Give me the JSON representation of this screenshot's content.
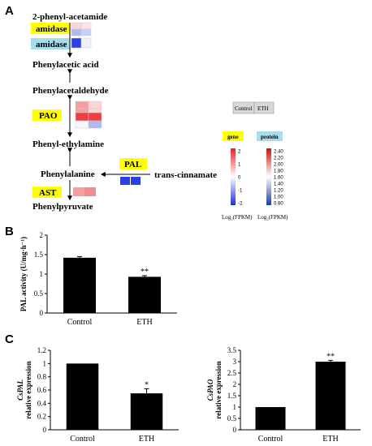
{
  "panel_labels": [
    "A",
    "B",
    "C"
  ],
  "pathway": {
    "compounds": {
      "c1": "2-phenyl-acetamide",
      "c2": "Phenylacetic acid",
      "c3": "Phenylacetaldehyde",
      "c4": "Phenyl-ethylamine",
      "c5": "Phenylalanine",
      "c6": "trans-cinnamate",
      "c7": "Phenylpyruvate"
    },
    "enzymes": {
      "amidase1": "amidase",
      "amidase2": "amidase",
      "pao": "PAO",
      "pal": "PAL",
      "ast": "AST"
    },
    "colors": {
      "gene_label_bg": "#ffff00",
      "protein_label_bg": "#a8dcec",
      "up_strong": "#ee3f44",
      "up_mid": "#f79ea0",
      "up_light": "#fbd4d4",
      "down_strong": "#2c3fe0",
      "down_light": "#b0b8f0"
    }
  },
  "legend": {
    "control_label": "Control",
    "eth_label": "ETH",
    "gene_title": "gene",
    "protein_title": "protein",
    "gene_ticks": [
      "2",
      "1",
      "0",
      "-1",
      "-2"
    ],
    "protein_ticks": [
      "2.40",
      "2.20",
      "2.00",
      "1.80",
      "1.60",
      "1.40",
      "1.20",
      "1.00",
      "0.80"
    ],
    "gene_axis_label": "Log₂(FPKM)",
    "protein_axis_label": "Log₂(FPKM)"
  },
  "chart_data": [
    {
      "type": "bar",
      "panel": "B",
      "categories": [
        "Control",
        "ETH"
      ],
      "values": [
        1.42,
        0.93
      ],
      "errors": [
        0.03,
        0.03
      ],
      "significance": [
        "",
        "**"
      ],
      "ylabel": "PAL activity (U/mg·h⁻¹)",
      "ylim": [
        0,
        2
      ],
      "yticks": [
        "0",
        "0.5",
        "1",
        "1.5",
        "2"
      ]
    },
    {
      "type": "bar",
      "panel": "C",
      "categories": [
        "Control",
        "ETH"
      ],
      "values": [
        1.0,
        0.55
      ],
      "errors": [
        0.0,
        0.07
      ],
      "significance": [
        "",
        "*"
      ],
      "ylabel_gene": "CsPAL",
      "ylabel_rest": "relative expression",
      "ylim": [
        0,
        1.2
      ],
      "yticks": [
        "0",
        "0.2",
        "0.4",
        "0.6",
        "0.8",
        "1",
        "1.2"
      ]
    },
    {
      "type": "bar",
      "panel": "C",
      "categories": [
        "Control",
        "ETH"
      ],
      "values": [
        1.0,
        3.0
      ],
      "errors": [
        0.0,
        0.06
      ],
      "significance": [
        "",
        "**"
      ],
      "ylabel_gene": "CsPAO",
      "ylabel_rest": "relative expression",
      "ylim": [
        0,
        3.5
      ],
      "yticks": [
        "0",
        "0.5",
        "1",
        "1.5",
        "2",
        "2.5",
        "3",
        "3.5"
      ]
    }
  ]
}
